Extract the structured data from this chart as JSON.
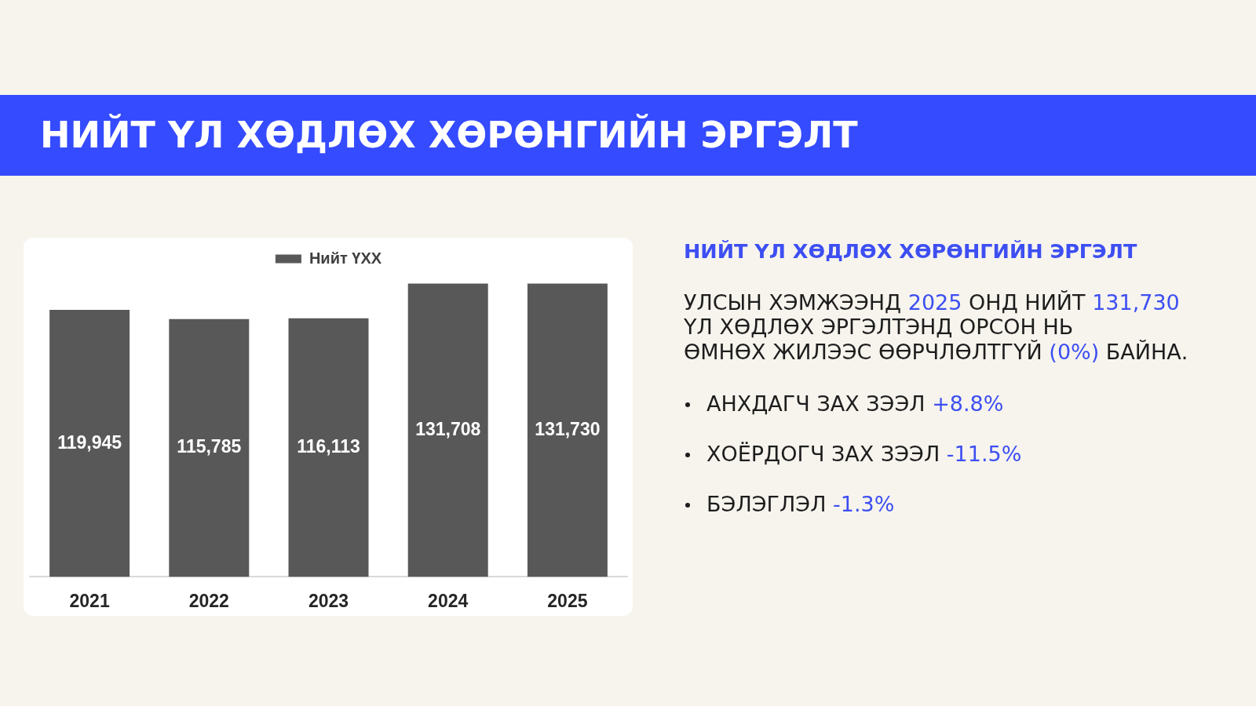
{
  "chart_data": [
    {
      "type": "bar",
      "title": "НИЙТ ҮЛ ХӨДЛӨХ ХӨРӨНГИЙН ЭРГЭЛТ",
      "categories": [
        "2021",
        "2022",
        "2023",
        "2024",
        "2025"
      ],
      "series": [
        {
          "name": "Нийт ҮХХ",
          "color": "#585858",
          "values": [
            119945,
            115785,
            116113,
            131708,
            131730
          ],
          "value_labels": [
            "119,945",
            "115,785",
            "116,113",
            "131,708",
            "131,730"
          ]
        }
      ],
      "tick_labels": "x",
      "legend": "top"
    },
    {
      "type": "other",
      "title": "НИЙТ ҮЛ ХӨДЛӨХ ХӨРӨНГИЙН ЭРГЭЛТ",
      "annotations": [
        "УЛСЫН ХЭМЖЭЭНД 2025 ОНД НИЙТ 131,730\nҮЛ ХӨДЛӨХ ЭРГЭЛТЭНД ОРСОН НЬ\nӨМНӨХ ЖИЛЭЭС ӨӨРЧЛӨЛТГҮЙ (0%) БАЙНА.",
        "АНХДАГЧ ЗАХ ЗЭЭЛ +8.8%",
        "ХОЁРДОГЧ ЗАХ ЗЭЭЛ -11.5%",
        "БЭЛЭГЛЭЛ -1.3%"
      ]
    }
  ]
}
